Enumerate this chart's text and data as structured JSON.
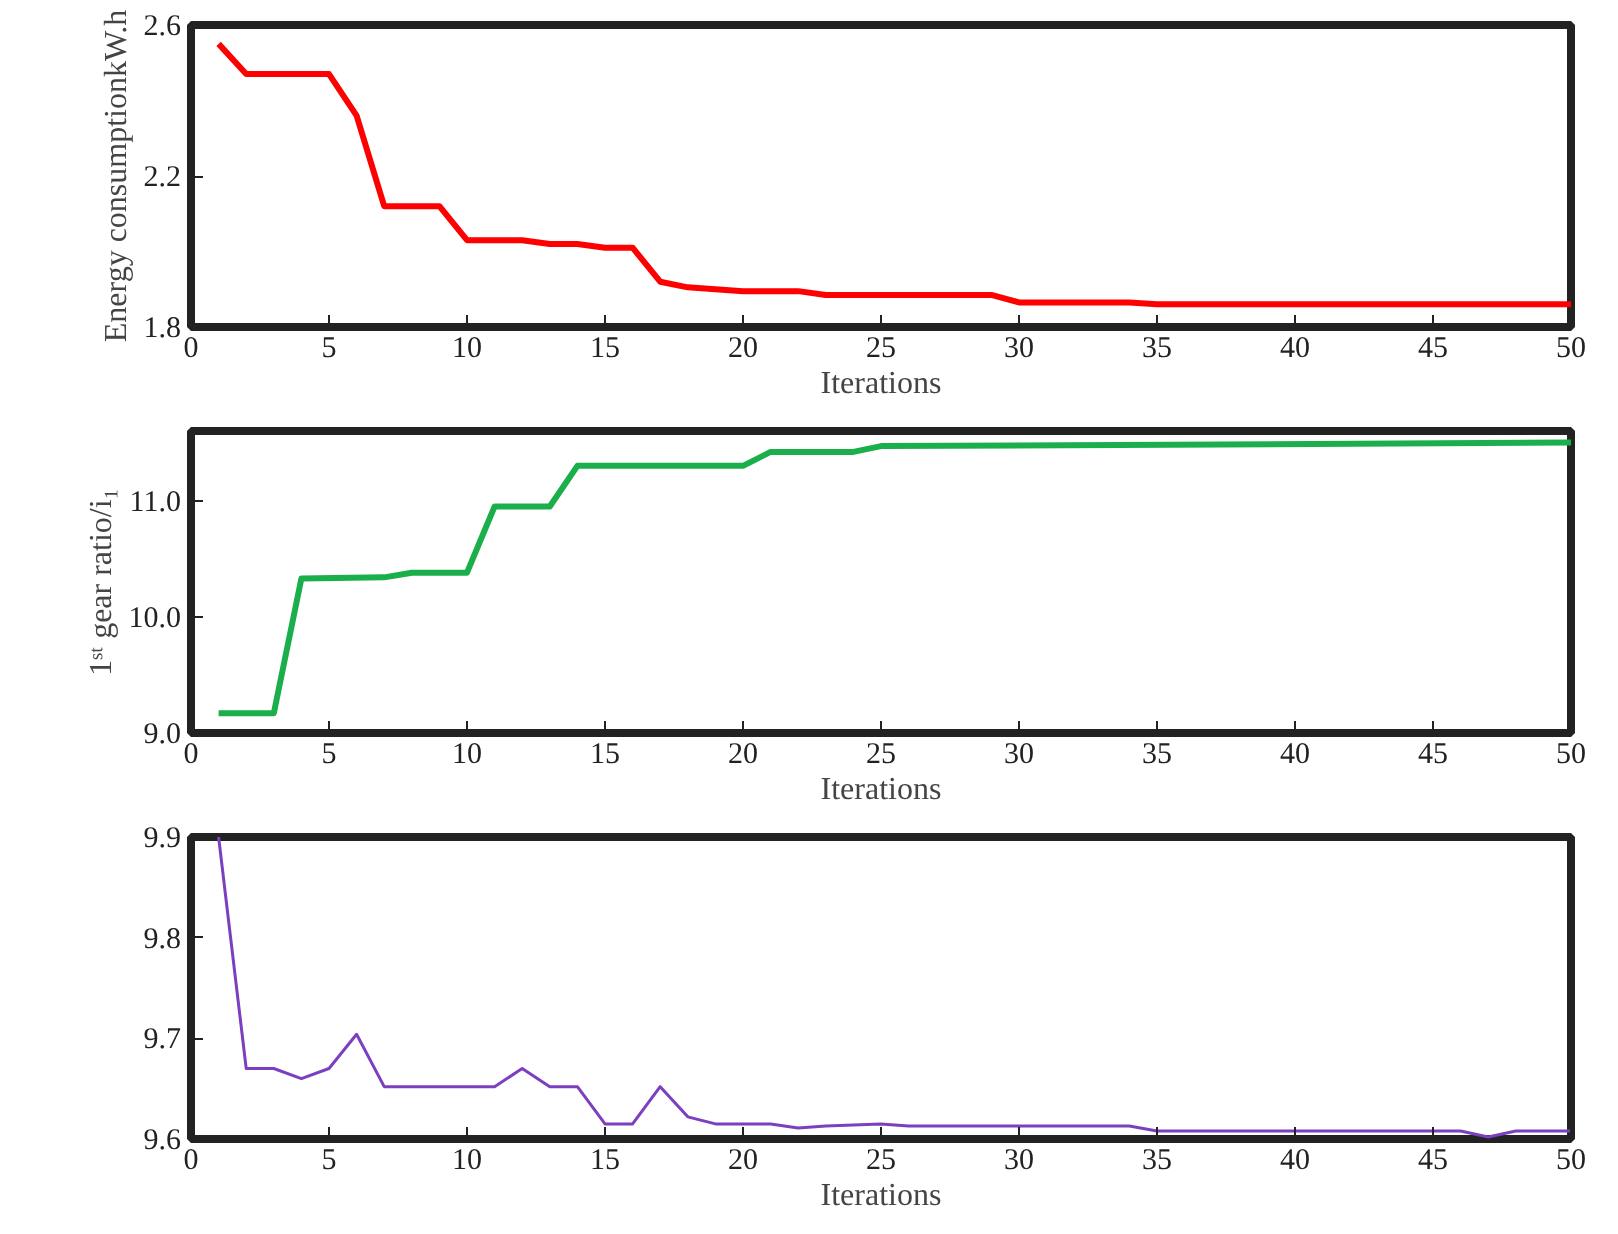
{
  "chart_data": [
    {
      "type": "line",
      "xlabel": "Iterations",
      "ylabel": "Energy consumptionkW.h",
      "xlim": [
        0,
        50
      ],
      "ylim": [
        1.8,
        2.6
      ],
      "xticks": [
        0,
        5,
        10,
        15,
        20,
        25,
        30,
        35,
        40,
        45,
        50
      ],
      "yticks": [
        1.8,
        2.2,
        2.6
      ],
      "grid": false,
      "x": [
        1,
        2,
        5,
        6,
        7,
        9,
        10,
        12,
        13,
        14,
        15,
        16,
        17,
        18,
        19,
        20,
        22,
        23,
        29,
        30,
        34,
        35,
        50
      ],
      "series": [
        {
          "color": "#ff0000",
          "values": [
            2.55,
            2.47,
            2.47,
            2.36,
            2.12,
            2.12,
            2.03,
            2.03,
            2.02,
            2.02,
            2.01,
            2.01,
            1.92,
            1.905,
            1.9,
            1.895,
            1.895,
            1.885,
            1.885,
            1.865,
            1.865,
            1.86,
            1.86
          ]
        }
      ]
    },
    {
      "type": "line",
      "xlabel": "Iterations",
      "ylabel": "1ˢᵗ gear ratio/i₁",
      "xlim": [
        0,
        50
      ],
      "ylim": [
        9.0,
        11.6
      ],
      "xticks": [
        0,
        5,
        10,
        15,
        20,
        25,
        30,
        35,
        40,
        45,
        50
      ],
      "yticks": [
        {
          "value": 9.0,
          "label": "9.0"
        },
        {
          "value": 10.0,
          "label": "10.0"
        },
        {
          "value": 11.0,
          "label": "11.0"
        }
      ],
      "grid": false,
      "x": [
        1,
        3,
        4,
        7,
        8,
        10,
        11,
        13,
        14,
        20,
        21,
        24,
        25,
        50
      ],
      "series": [
        {
          "color": "#1aaf4b",
          "values": [
            9.17,
            9.17,
            10.33,
            10.34,
            10.38,
            10.38,
            10.95,
            10.95,
            11.3,
            11.3,
            11.42,
            11.42,
            11.47,
            11.5
          ]
        }
      ]
    },
    {
      "type": "line",
      "xlabel": "Iterations",
      "xlim": [
        0,
        50
      ],
      "ylim": [
        9.6,
        9.9
      ],
      "xticks": [
        0,
        5,
        10,
        15,
        20,
        25,
        30,
        35,
        40,
        45,
        50
      ],
      "yticks": [
        9.6,
        9.7,
        9.8,
        9.9
      ],
      "grid": false,
      "x": [
        1,
        2,
        3,
        4,
        5,
        6,
        7,
        11,
        12,
        13,
        14,
        15,
        16,
        17,
        18,
        19,
        21,
        22,
        23,
        25,
        26,
        34,
        35,
        46,
        47,
        48,
        50
      ],
      "series": [
        {
          "color": "#7b3fbf",
          "values": [
            9.9,
            9.67,
            9.67,
            9.66,
            9.67,
            9.704,
            9.652,
            9.652,
            9.67,
            9.652,
            9.652,
            9.615,
            9.615,
            9.652,
            9.622,
            9.615,
            9.615,
            9.611,
            9.613,
            9.615,
            9.613,
            9.613,
            9.608,
            9.608,
            9.602,
            9.608,
            9.608
          ]
        }
      ]
    }
  ]
}
